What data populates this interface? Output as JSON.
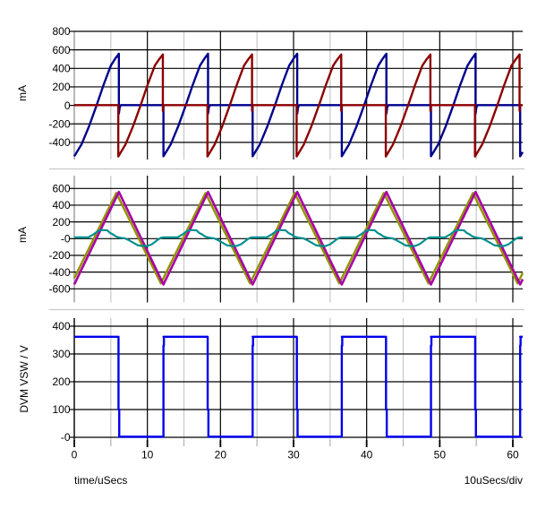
{
  "chart_data": {
    "type": "line",
    "title": "",
    "background": "#FFFFFF",
    "grid": {
      "major_color": "#000000",
      "minor_color": "#C8C8C8",
      "axis_color": "#B8B8B8",
      "separator_color": "#C8C8C8"
    },
    "x_axis": {
      "label": "time/uSecs",
      "scale_label": "10uSecs/div",
      "major_tick_labels": [
        "0",
        "10",
        "20",
        "30",
        "40",
        "50",
        "60"
      ],
      "major_values": [
        0,
        10,
        20,
        30,
        40,
        50,
        60
      ],
      "minor_values": [
        5,
        15,
        25,
        35,
        45,
        55
      ],
      "t_end": 61.35,
      "switching_period_us": 12.2
    },
    "plots": [
      {
        "id": "phase-currents",
        "unit_label": "mA",
        "y_tick_labels": [
          "800",
          "600",
          "400",
          "200",
          "0",
          "-200",
          "-400"
        ],
        "y_tick_values": [
          800,
          600,
          400,
          200,
          0,
          -200,
          -400
        ],
        "series": [
          {
            "name": "phase1-inductor-current",
            "color": "#00008C",
            "width": 2.4,
            "period": 12.2,
            "points": [
              [
                0,
                -550
              ],
              [
                1,
                -420
              ],
              [
                2,
                -230
              ],
              [
                3.05,
                0
              ],
              [
                4,
                220
              ],
              [
                5,
                430
              ],
              [
                5.6,
                505
              ],
              [
                6.1,
                558
              ],
              [
                6.1,
                -90
              ],
              [
                6.22,
                -18
              ],
              [
                6.38,
                3
              ],
              [
                12.2,
                3
              ],
              [
                12.2,
                -550
              ]
            ]
          },
          {
            "name": "phase2-inductor-current",
            "color": "#8C0000",
            "width": 2.4,
            "period": 12.2,
            "points": [
              [
                0,
                3
              ],
              [
                6.02,
                3
              ],
              [
                6.02,
                -552
              ],
              [
                7.02,
                -420
              ],
              [
                8.02,
                -230
              ],
              [
                9.07,
                0
              ],
              [
                10.02,
                220
              ],
              [
                11.02,
                430
              ],
              [
                11.62,
                500
              ],
              [
                12.12,
                550
              ],
              [
                12.12,
                -60
              ],
              [
                12.19,
                3
              ]
            ]
          }
        ]
      },
      {
        "id": "ripple-currents",
        "unit_label": "mA",
        "y_tick_labels": [
          "600",
          "400",
          "200",
          "-0",
          "-200",
          "-400",
          "-600"
        ],
        "y_tick_values": [
          600,
          400,
          200,
          0,
          -200,
          -400,
          -600
        ],
        "series": [
          {
            "name": "cap-ripple-current",
            "color": "#949400",
            "width": 2.5,
            "period": 12.2,
            "points": [
              [
                0,
                -473
              ],
              [
                5.75,
                545
              ],
              [
                11.85,
                -535
              ],
              [
                12.2,
                -473
              ]
            ]
          },
          {
            "name": "output-ripple-current",
            "color": "#A800A8",
            "width": 2.6,
            "period": 12.2,
            "points": [
              [
                0,
                -548
              ],
              [
                6.1,
                558
              ],
              [
                12.2,
                -548
              ]
            ]
          },
          {
            "name": "magnetizing-current",
            "color": "#008F8F",
            "width": 2.2,
            "period": 12.2,
            "points": [
              [
                0,
                15
              ],
              [
                1.9,
                15
              ],
              [
                2.7,
                55
              ],
              [
                3.3,
                95
              ],
              [
                3.8,
                103
              ],
              [
                4.5,
                100
              ],
              [
                4.9,
                68
              ],
              [
                5.3,
                50
              ],
              [
                5.7,
                26
              ],
              [
                6.2,
                12
              ],
              [
                6.9,
                4
              ],
              [
                7.5,
                -20
              ],
              [
                8.1,
                -50
              ],
              [
                8.7,
                -80
              ],
              [
                9.3,
                -88
              ],
              [
                10,
                -88
              ],
              [
                10.6,
                -68
              ],
              [
                11.1,
                -36
              ],
              [
                11.5,
                -8
              ],
              [
                11.9,
                11
              ],
              [
                12.2,
                15
              ]
            ]
          }
        ]
      },
      {
        "id": "switch-node-voltage",
        "unit_label": "DVM VSW / V",
        "y_tick_labels": [
          "400",
          "300",
          "200",
          "100",
          "-0"
        ],
        "y_tick_values": [
          400,
          300,
          200,
          100,
          0
        ],
        "series": [
          {
            "name": "vsw-voltage",
            "color": "#0000EE",
            "width": 2.4,
            "period": 12.2,
            "points": [
              [
                0,
                362
              ],
              [
                6.05,
                362
              ],
              [
                6.05,
                100
              ],
              [
                6.15,
                100
              ],
              [
                6.15,
                2
              ],
              [
                12.2,
                2
              ],
              [
                12.2,
                330
              ],
              [
                12.26,
                330
              ],
              [
                12.26,
                362
              ],
              [
                12.3,
                362
              ]
            ]
          }
        ]
      }
    ]
  }
}
